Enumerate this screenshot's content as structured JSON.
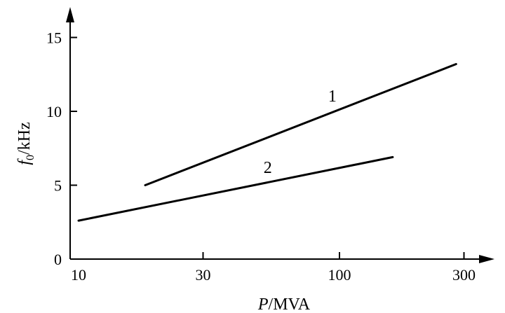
{
  "chart_data": {
    "type": "line",
    "title": "",
    "xscale": "log",
    "xlim": [
      10,
      300
    ],
    "ylim": [
      0,
      15
    ],
    "xticks": [
      10,
      30,
      100,
      300
    ],
    "yticks": [
      0,
      5,
      10,
      15
    ],
    "xlabel": {
      "var": "P",
      "unit": "/MVA"
    },
    "ylabel": {
      "var": "f",
      "sub": "0",
      "unit": "/kHz"
    },
    "grid": false,
    "series": [
      {
        "label": "1",
        "x": [
          18,
          280
        ],
        "y": [
          5.0,
          13.2
        ]
      },
      {
        "label": "2",
        "x": [
          10,
          160
        ],
        "y": [
          2.6,
          6.9
        ]
      }
    ]
  }
}
